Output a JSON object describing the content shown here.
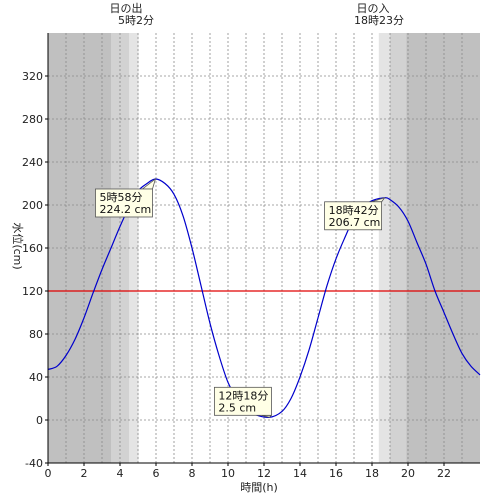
{
  "chart_data": {
    "type": "line",
    "xlabel": "時間(h)",
    "ylabel": "水位(cm)",
    "xlim": [
      0,
      24
    ],
    "ylim": [
      -40,
      360
    ],
    "x_ticks": [
      0,
      2,
      4,
      6,
      8,
      10,
      12,
      14,
      16,
      18,
      20,
      22
    ],
    "y_ticks": [
      -40,
      0,
      40,
      80,
      120,
      160,
      200,
      240,
      280,
      320
    ],
    "x_grid_minor_step": 1,
    "reference_line": {
      "value": 120,
      "color": "#e00000"
    },
    "series": [
      {
        "color": "#0000cc",
        "x": [
          0,
          0.5,
          1,
          1.5,
          2,
          2.5,
          3,
          3.5,
          4,
          4.5,
          5,
          5.5,
          5.97,
          6.5,
          7,
          7.5,
          8,
          8.5,
          9,
          9.5,
          10,
          10.5,
          11,
          11.5,
          12.3,
          13,
          13.5,
          14,
          14.5,
          15,
          15.5,
          16,
          16.5,
          17,
          17.5,
          18,
          18.7,
          19,
          19.5,
          20,
          20.5,
          21,
          21.5,
          22,
          22.5,
          23,
          23.5,
          24
        ],
        "y": [
          47,
          50,
          60,
          75,
          95,
          118,
          140,
          160,
          180,
          198,
          213,
          220,
          224.2,
          220,
          210,
          190,
          160,
          125,
          90,
          60,
          35,
          20,
          10,
          5,
          2.5,
          8,
          20,
          40,
          65,
          95,
          125,
          150,
          170,
          188,
          198,
          204,
          206.7,
          205,
          198,
          185,
          165,
          145,
          120,
          100,
          80,
          62,
          50,
          42
        ]
      }
    ],
    "sunrise": {
      "label": "日の出",
      "time": "5時2分",
      "hour": 5.03
    },
    "sunset": {
      "label": "日の入",
      "time": "18時23分",
      "hour": 18.38
    },
    "night_bands": [
      {
        "from": 0,
        "to": 3.5,
        "shade": "#c0c0c0"
      },
      {
        "from": 3.5,
        "to": 4.5,
        "shade": "#d2d2d2"
      },
      {
        "from": 4.5,
        "to": 5.03,
        "shade": "#e4e4e4"
      },
      {
        "from": 18.38,
        "to": 19,
        "shade": "#e4e4e4"
      },
      {
        "from": 19,
        "to": 19.9,
        "shade": "#d2d2d2"
      },
      {
        "from": 19.9,
        "to": 24,
        "shade": "#c0c0c0"
      }
    ],
    "annotations": [
      {
        "line1": "5時58分",
        "line2": "224.2 cm",
        "x": 5.97,
        "y": 224.2
      },
      {
        "line1": "12時18分",
        "line2": "2.5 cm",
        "x": 12.3,
        "y": 2.5
      },
      {
        "line1": "18時42分",
        "line2": "206.7 cm",
        "x": 18.7,
        "y": 206.7
      }
    ]
  }
}
